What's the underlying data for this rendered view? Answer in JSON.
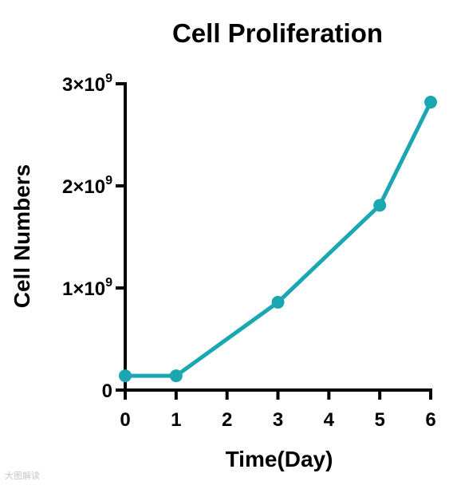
{
  "chart_data": {
    "type": "line",
    "title": "Cell Proliferation",
    "xlabel": "Time(Day)",
    "ylabel": "Cell Numbers",
    "x_ticks": [
      0,
      1,
      2,
      3,
      4,
      5,
      6
    ],
    "y_ticks": [
      {
        "value": 0,
        "mantissa": "0",
        "exp": ""
      },
      {
        "value": 1000000000,
        "mantissa": "1×10",
        "exp": "9"
      },
      {
        "value": 2000000000,
        "mantissa": "2×10",
        "exp": "9"
      },
      {
        "value": 3000000000,
        "mantissa": "3×10",
        "exp": "9"
      }
    ],
    "xlim": [
      0,
      6
    ],
    "ylim": [
      0,
      3000000000
    ],
    "series": [
      {
        "color": "#1aa7b1",
        "x": [
          0,
          1,
          3,
          5,
          6
        ],
        "y": [
          140000000,
          140000000,
          860000000,
          1810000000,
          2820000000
        ]
      }
    ],
    "grid": false,
    "legend": "none"
  },
  "watermark": "大图解读"
}
